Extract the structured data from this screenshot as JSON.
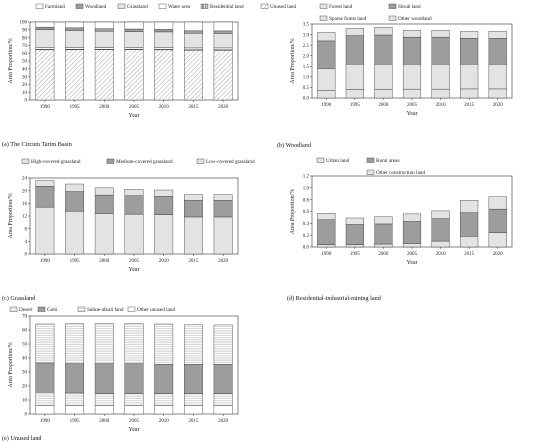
{
  "chart_data": [
    {
      "id": "a",
      "type": "stacked-bar",
      "caption": "(a)  The Circum Tarim Basin",
      "xlabel": "Year",
      "ylabel": "Area Proportion/%",
      "categories": [
        "1990",
        "1995",
        "2000",
        "2005",
        "2010",
        "2015",
        "2020"
      ],
      "ylim": [
        0,
        100
      ],
      "yticks": [
        0,
        10,
        20,
        30,
        40,
        50,
        60,
        70,
        80,
        90,
        100
      ],
      "legend_position": "top",
      "series": [
        {
          "name": "Unused land",
          "pattern": "diag",
          "values": [
            64.3,
            64.5,
            64.6,
            64.6,
            64.3,
            63.7,
            63.6
          ]
        },
        {
          "name": "Residential land",
          "pattern": "vert",
          "values": [
            0.6,
            0.5,
            0.5,
            0.6,
            0.6,
            0.8,
            0.8
          ]
        },
        {
          "name": "Water area",
          "pattern": "white",
          "values": [
            2.2,
            2.1,
            2.2,
            2.2,
            2.2,
            2.3,
            2.4
          ]
        },
        {
          "name": "Grassland",
          "pattern": "light",
          "values": [
            23.2,
            22.1,
            20.8,
            20.4,
            20.2,
            18.7,
            18.6
          ]
        },
        {
          "name": "Woodland",
          "pattern": "dark",
          "values": [
            3.1,
            3.3,
            3.3,
            3.2,
            3.2,
            3.2,
            3.2
          ]
        },
        {
          "name": "Farmland",
          "pattern": "white",
          "values": [
            6.6,
            7.5,
            8.6,
            9.0,
            9.5,
            11.3,
            11.4
          ]
        }
      ]
    },
    {
      "id": "b",
      "type": "stacked-bar",
      "caption": "(b) Woodland",
      "xlabel": "Year",
      "ylabel": "Area Proportion/%",
      "categories": [
        "1990",
        "1995",
        "2000",
        "2005",
        "2010",
        "2015",
        "2020"
      ],
      "ylim": [
        0,
        3.5
      ],
      "yticks": [
        "0.0",
        "0.5",
        "1.0",
        "1.5",
        "2.0",
        "2.5",
        "3.0",
        "3.5"
      ],
      "legend_position": "top",
      "series": [
        {
          "name": "Forest land",
          "pattern": "light",
          "values": [
            0.35,
            0.4,
            0.4,
            0.42,
            0.42,
            0.43,
            0.43
          ]
        },
        {
          "name": "Sparse forest land",
          "pattern": "light",
          "values": [
            1.05,
            1.2,
            1.2,
            1.18,
            1.18,
            1.17,
            1.17
          ]
        },
        {
          "name": "Shrub land",
          "pattern": "dark",
          "values": [
            1.3,
            1.35,
            1.38,
            1.28,
            1.28,
            1.22,
            1.22
          ]
        },
        {
          "name": "Other woodland",
          "pattern": "light",
          "values": [
            0.4,
            0.35,
            0.37,
            0.32,
            0.32,
            0.33,
            0.33
          ]
        }
      ]
    },
    {
      "id": "c",
      "type": "stacked-bar",
      "caption": "(c) Grassland",
      "xlabel": "Year",
      "ylabel": "Area Proportion/%",
      "categories": [
        "1990",
        "1995",
        "2000",
        "2005",
        "2010",
        "2015",
        "2020"
      ],
      "ylim": [
        0,
        24
      ],
      "yticks": [
        0,
        4,
        8,
        12,
        16,
        20,
        24
      ],
      "legend_position": "top",
      "series": [
        {
          "name": "Low-covered grassland",
          "pattern": "light",
          "values": [
            14.8,
            13.5,
            12.8,
            12.6,
            12.4,
            11.7,
            11.7
          ]
        },
        {
          "name": "Medium-covered grassland",
          "pattern": "dark",
          "values": [
            6.6,
            6.2,
            5.8,
            5.8,
            5.8,
            5.2,
            5.2
          ]
        },
        {
          "name": "High-covered grassland",
          "pattern": "light",
          "values": [
            1.8,
            2.4,
            2.3,
            2.0,
            2.0,
            1.8,
            1.8
          ]
        }
      ]
    },
    {
      "id": "d",
      "type": "stacked-bar",
      "caption": "(d) Residential-industrial-mining land",
      "xlabel": "Year",
      "ylabel": "Area Proportion/%",
      "categories": [
        "1990",
        "1995",
        "2000",
        "2005",
        "2010",
        "2015",
        "2020"
      ],
      "ylim": [
        0,
        1.2
      ],
      "yticks": [
        "0.0",
        "0.2",
        "0.4",
        "0.6",
        "0.8",
        "1.0",
        "1.2"
      ],
      "legend_position": "top",
      "series": [
        {
          "name": "Urban land",
          "pattern": "light",
          "values": [
            0.04,
            0.04,
            0.05,
            0.06,
            0.1,
            0.18,
            0.24
          ]
        },
        {
          "name": "Rural areas",
          "pattern": "dark",
          "values": [
            0.42,
            0.34,
            0.34,
            0.37,
            0.38,
            0.4,
            0.4
          ]
        },
        {
          "name": "Other construction land",
          "pattern": "light",
          "values": [
            0.11,
            0.11,
            0.12,
            0.13,
            0.13,
            0.21,
            0.21
          ]
        }
      ]
    },
    {
      "id": "e",
      "type": "stacked-bar",
      "caption": "(e) Unused land",
      "xlabel": "Year",
      "ylabel": "Area Proportion/%",
      "categories": [
        "1990",
        "1995",
        "2000",
        "2005",
        "2010",
        "2015",
        "2020"
      ],
      "ylim": [
        0,
        70
      ],
      "yticks": [
        0,
        10,
        20,
        30,
        40,
        50,
        60,
        70
      ],
      "legend_position": "top",
      "series": [
        {
          "name": "Other unused land",
          "pattern": "white",
          "values": [
            6.0,
            6.0,
            6.0,
            6.0,
            6.0,
            6.0,
            6.0
          ]
        },
        {
          "name": "Saline-alkali land",
          "pattern": "horiz",
          "values": [
            9.5,
            9.0,
            8.5,
            8.5,
            8.5,
            8.5,
            8.5
          ]
        },
        {
          "name": "Gobi",
          "pattern": "dark",
          "values": [
            21.0,
            21.0,
            21.5,
            21.5,
            21.0,
            21.0,
            21.0
          ]
        },
        {
          "name": "Desert",
          "pattern": "horiz",
          "values": [
            27.8,
            28.5,
            28.6,
            28.6,
            28.8,
            28.2,
            28.1
          ]
        }
      ]
    }
  ]
}
